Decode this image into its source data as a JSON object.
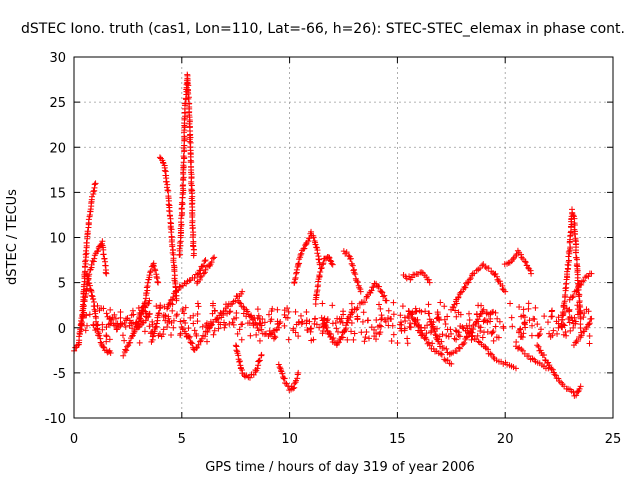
{
  "chart_data": {
    "type": "scatter",
    "title": "dSTEC Iono. truth (cas1, Lon=110, Lat=-66, h=26): STEC-STEC_elemax in phase cont.",
    "xlabel": "GPS time / hours of day 319 of year 2006",
    "ylabel": "dSTEC  / TECUs",
    "xlim": [
      0,
      25
    ],
    "ylim": [
      -10,
      30
    ],
    "xticks": [
      0,
      5,
      10,
      15,
      20,
      25
    ],
    "yticks": [
      -10,
      -5,
      0,
      5,
      10,
      15,
      20,
      25,
      30
    ],
    "grid": true,
    "marker": "+",
    "color": "#ff0000",
    "arcs": [
      {
        "x": [
          0.0,
          0.2,
          0.4,
          0.55,
          0.7,
          0.85,
          1.0
        ],
        "y": [
          -2.5,
          -2.0,
          2.0,
          8.0,
          12.0,
          14.5,
          16.0
        ]
      },
      {
        "x": [
          0.35,
          0.5,
          0.7,
          0.9,
          1.1,
          1.3,
          1.5
        ],
        "y": [
          0.0,
          3.0,
          6.0,
          7.5,
          8.5,
          9.5,
          6.0
        ]
      },
      {
        "x": [
          0.6,
          0.9,
          1.1,
          1.3,
          1.5,
          1.7
        ],
        "y": [
          6.0,
          3.0,
          -0.5,
          -2.0,
          -2.5,
          -2.8
        ]
      },
      {
        "x": [
          1.5,
          2.0,
          2.5,
          3.0,
          3.5
        ],
        "y": [
          1.5,
          0.0,
          1.0,
          0.0,
          1.5
        ]
      },
      {
        "x": [
          2.3,
          2.6,
          2.9,
          3.2,
          3.5
        ],
        "y": [
          -3.0,
          -1.5,
          0.0,
          2.0,
          3.0
        ]
      },
      {
        "x": [
          3.0,
          3.3,
          3.5,
          3.7,
          3.9
        ],
        "y": [
          1.0,
          3.0,
          6.0,
          7.0,
          5.0
        ]
      },
      {
        "x": [
          3.6,
          3.8,
          4.0
        ],
        "y": [
          -1.5,
          0.0,
          2.5
        ]
      },
      {
        "x": [
          4.0,
          4.2,
          4.35,
          4.5,
          4.6,
          4.75
        ],
        "y": [
          19.0,
          18.0,
          15.0,
          11.0,
          8.0,
          3.0
        ]
      },
      {
        "x": [
          4.3,
          4.6,
          4.9,
          5.2,
          5.5,
          5.8,
          6.1
        ],
        "y": [
          2.0,
          3.5,
          4.5,
          5.0,
          5.5,
          6.0,
          7.5
        ]
      },
      {
        "x": [
          4.9,
          5.05,
          5.15,
          5.25,
          5.35,
          5.45,
          5.55
        ],
        "y": [
          8.0,
          15.0,
          24.0,
          28.0,
          24.0,
          16.0,
          8.0
        ]
      },
      {
        "x": [
          5.0,
          5.3,
          5.6,
          6.0,
          6.3
        ],
        "y": [
          0.0,
          -1.0,
          -2.5,
          -1.0,
          0.0
        ]
      },
      {
        "x": [
          5.7,
          6.0,
          6.3,
          6.5
        ],
        "y": [
          5.0,
          6.0,
          7.0,
          7.8
        ]
      },
      {
        "x": [
          6.2,
          6.6,
          7.0,
          7.4,
          7.8
        ],
        "y": [
          0.0,
          1.0,
          2.0,
          3.0,
          4.0
        ]
      },
      {
        "x": [
          7.5,
          7.8,
          8.1,
          8.4,
          8.7
        ],
        "y": [
          -2.0,
          -5.0,
          -5.5,
          -5.0,
          -3.0
        ]
      },
      {
        "x": [
          7.6,
          8.0,
          8.5,
          9.0,
          9.5
        ],
        "y": [
          3.0,
          2.0,
          0.0,
          -1.0,
          0.0
        ]
      },
      {
        "x": [
          9.5,
          9.8,
          10.0,
          10.2,
          10.4
        ],
        "y": [
          -4.0,
          -6.0,
          -6.8,
          -6.5,
          -5.0
        ]
      },
      {
        "x": [
          10.2,
          10.5,
          10.8,
          11.0,
          11.2,
          11.4
        ],
        "y": [
          5.0,
          8.0,
          9.5,
          10.5,
          9.5,
          7.0
        ]
      },
      {
        "x": [
          11.2,
          11.4,
          11.6,
          11.8,
          12.0
        ],
        "y": [
          3.0,
          6.0,
          7.5,
          8.0,
          7.0
        ]
      },
      {
        "x": [
          11.5,
          11.9,
          12.2,
          12.6,
          12.9
        ],
        "y": [
          1.0,
          -1.0,
          -2.0,
          0.0,
          2.0
        ]
      },
      {
        "x": [
          12.5,
          12.8,
          13.0,
          13.3
        ],
        "y": [
          8.5,
          8.0,
          6.0,
          4.0
        ]
      },
      {
        "x": [
          13.0,
          13.5,
          14.0,
          14.5
        ],
        "y": [
          2.0,
          3.0,
          5.0,
          3.0
        ]
      },
      {
        "x": [
          15.3,
          15.6,
          15.9,
          16.2,
          16.5
        ],
        "y": [
          5.8,
          5.5,
          6.0,
          6.0,
          5.0
        ]
      },
      {
        "x": [
          15.5,
          16.0,
          16.5,
          17.0,
          17.5
        ],
        "y": [
          2.0,
          0.0,
          -2.0,
          -3.0,
          -4.0
        ]
      },
      {
        "x": [
          16.5,
          17.0,
          17.5,
          18.0,
          18.5,
          19.0
        ],
        "y": [
          1.0,
          -2.0,
          -3.0,
          -2.0,
          0.0,
          2.0
        ]
      },
      {
        "x": [
          17.5,
          18.0,
          18.5,
          19.0,
          19.5,
          20.0
        ],
        "y": [
          2.0,
          4.0,
          6.0,
          7.0,
          6.0,
          4.0
        ]
      },
      {
        "x": [
          18.0,
          18.5,
          19.0,
          19.5,
          20.0,
          20.5
        ],
        "y": [
          0.0,
          -1.0,
          -2.0,
          -3.5,
          -4.0,
          -4.5
        ]
      },
      {
        "x": [
          20.0,
          20.3,
          20.6,
          20.9,
          21.2
        ],
        "y": [
          7.0,
          7.5,
          8.5,
          7.5,
          6.0
        ]
      },
      {
        "x": [
          20.5,
          21.0,
          21.5,
          22.0
        ],
        "y": [
          -2.0,
          -3.0,
          -4.0,
          -4.5
        ]
      },
      {
        "x": [
          21.5,
          22.0,
          22.5,
          23.0,
          23.3,
          23.5
        ],
        "y": [
          -2.0,
          -4.0,
          -6.0,
          -7.0,
          -7.5,
          -6.5
        ]
      },
      {
        "x": [
          22.6,
          22.8,
          23.0,
          23.1,
          23.2,
          23.35,
          23.5
        ],
        "y": [
          0.0,
          4.0,
          9.0,
          13.0,
          12.0,
          6.0,
          1.0
        ]
      },
      {
        "x": [
          23.0,
          23.4,
          23.7,
          24.0
        ],
        "y": [
          3.0,
          4.5,
          5.5,
          6.0
        ]
      },
      {
        "x": [
          23.2,
          23.5,
          23.8,
          24.0
        ],
        "y": [
          -2.0,
          -1.0,
          0.0,
          1.0
        ]
      }
    ],
    "noise_band": {
      "x": [
        0.5,
        24.0
      ],
      "y_center": 0.5,
      "y_spread": 2.5
    }
  }
}
